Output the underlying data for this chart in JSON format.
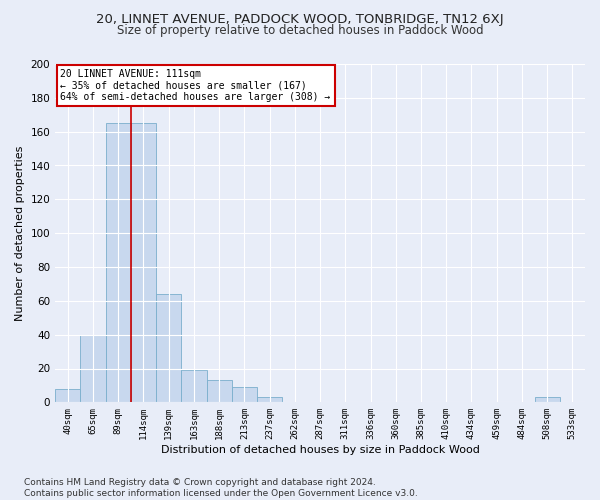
{
  "title": "20, LINNET AVENUE, PADDOCK WOOD, TONBRIDGE, TN12 6XJ",
  "subtitle": "Size of property relative to detached houses in Paddock Wood",
  "xlabel": "Distribution of detached houses by size in Paddock Wood",
  "ylabel": "Number of detached properties",
  "bar_labels": [
    "40sqm",
    "65sqm",
    "89sqm",
    "114sqm",
    "139sqm",
    "163sqm",
    "188sqm",
    "213sqm",
    "237sqm",
    "262sqm",
    "287sqm",
    "311sqm",
    "336sqm",
    "360sqm",
    "385sqm",
    "410sqm",
    "434sqm",
    "459sqm",
    "484sqm",
    "508sqm",
    "533sqm"
  ],
  "bar_values": [
    8,
    40,
    165,
    165,
    64,
    19,
    13,
    9,
    3,
    0,
    0,
    0,
    0,
    0,
    0,
    0,
    0,
    0,
    0,
    3,
    0
  ],
  "bar_color": "#c8d8ee",
  "bar_edgecolor": "#7aaecc",
  "annotation_text": "20 LINNET AVENUE: 111sqm\n← 35% of detached houses are smaller (167)\n64% of semi-detached houses are larger (308) →",
  "annotation_box_color": "#ffffff",
  "annotation_box_edgecolor": "#cc0000",
  "vline_color": "#cc0000",
  "vline_x": 2.5,
  "ylim": [
    0,
    200
  ],
  "yticks": [
    0,
    20,
    40,
    60,
    80,
    100,
    120,
    140,
    160,
    180,
    200
  ],
  "bg_color": "#e8edf8",
  "plot_bg_color": "#e8edf8",
  "footer": "Contains HM Land Registry data © Crown copyright and database right 2024.\nContains public sector information licensed under the Open Government Licence v3.0.",
  "title_fontsize": 9.5,
  "subtitle_fontsize": 8.5,
  "xlabel_fontsize": 8,
  "ylabel_fontsize": 8,
  "footer_fontsize": 6.5
}
